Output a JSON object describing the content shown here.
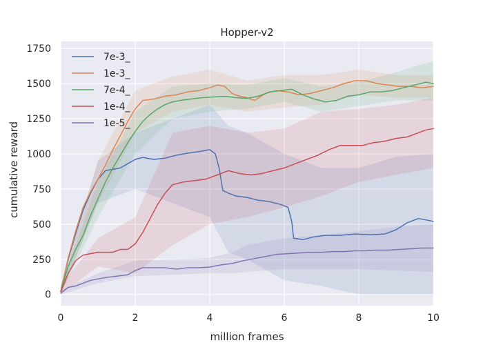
{
  "chart_data": {
    "type": "line",
    "title": "Hopper-v2",
    "xlabel": "million frames",
    "ylabel": "cumulative reward",
    "xlim": [
      0,
      10
    ],
    "ylim": [
      -80,
      1800
    ],
    "xticks": [
      0,
      2,
      4,
      6,
      8,
      10
    ],
    "yticks": [
      0,
      250,
      500,
      750,
      1000,
      1250,
      1500,
      1750
    ],
    "grid": true,
    "legend_position": "upper-left",
    "background": "#eaeaf2",
    "series": [
      {
        "name": "7e-3_",
        "color": "#4c72b0",
        "points": [
          [
            0,
            20
          ],
          [
            0.2,
            250
          ],
          [
            0.4,
            430
          ],
          [
            0.6,
            600
          ],
          [
            0.8,
            720
          ],
          [
            1.0,
            820
          ],
          [
            1.2,
            880
          ],
          [
            1.4,
            890
          ],
          [
            1.6,
            900
          ],
          [
            1.8,
            930
          ],
          [
            2.0,
            960
          ],
          [
            2.2,
            975
          ],
          [
            2.5,
            960
          ],
          [
            2.8,
            970
          ],
          [
            3.1,
            990
          ],
          [
            3.4,
            1005
          ],
          [
            3.7,
            1015
          ],
          [
            4.0,
            1030
          ],
          [
            4.15,
            1000
          ],
          [
            4.25,
            900
          ],
          [
            4.35,
            740
          ],
          [
            4.5,
            720
          ],
          [
            4.7,
            700
          ],
          [
            5.0,
            690
          ],
          [
            5.3,
            670
          ],
          [
            5.6,
            660
          ],
          [
            5.9,
            640
          ],
          [
            6.1,
            620
          ],
          [
            6.2,
            520
          ],
          [
            6.25,
            400
          ],
          [
            6.5,
            390
          ],
          [
            6.8,
            410
          ],
          [
            7.1,
            420
          ],
          [
            7.5,
            420
          ],
          [
            7.9,
            430
          ],
          [
            8.3,
            425
          ],
          [
            8.7,
            430
          ],
          [
            9.0,
            460
          ],
          [
            9.3,
            510
          ],
          [
            9.6,
            540
          ],
          [
            9.8,
            530
          ],
          [
            10,
            520
          ]
        ],
        "band": [
          [
            0,
            0,
            60
          ],
          [
            1,
            650,
            950
          ],
          [
            2,
            750,
            1150
          ],
          [
            3,
            650,
            1250
          ],
          [
            4,
            550,
            1350
          ],
          [
            4.5,
            300,
            1200
          ],
          [
            5,
            250,
            1150
          ],
          [
            6,
            100,
            1000
          ],
          [
            7,
            60,
            900
          ],
          [
            8,
            0,
            900
          ],
          [
            9,
            0,
            980
          ],
          [
            10,
            0,
            1000
          ]
        ]
      },
      {
        "name": "1e-3_",
        "color": "#dd8452",
        "points": [
          [
            0,
            20
          ],
          [
            0.2,
            260
          ],
          [
            0.4,
            450
          ],
          [
            0.6,
            620
          ],
          [
            0.8,
            730
          ],
          [
            1.0,
            820
          ],
          [
            1.2,
            920
          ],
          [
            1.4,
            1030
          ],
          [
            1.6,
            1130
          ],
          [
            1.8,
            1230
          ],
          [
            2.0,
            1320
          ],
          [
            2.2,
            1380
          ],
          [
            2.5,
            1390
          ],
          [
            2.8,
            1410
          ],
          [
            3.1,
            1420
          ],
          [
            3.4,
            1440
          ],
          [
            3.7,
            1450
          ],
          [
            4.0,
            1470
          ],
          [
            4.2,
            1490
          ],
          [
            4.4,
            1480
          ],
          [
            4.6,
            1430
          ],
          [
            4.8,
            1410
          ],
          [
            5.0,
            1400
          ],
          [
            5.2,
            1380
          ],
          [
            5.5,
            1430
          ],
          [
            5.8,
            1450
          ],
          [
            6.1,
            1440
          ],
          [
            6.4,
            1420
          ],
          [
            6.7,
            1430
          ],
          [
            7.0,
            1450
          ],
          [
            7.3,
            1470
          ],
          [
            7.6,
            1500
          ],
          [
            7.9,
            1520
          ],
          [
            8.2,
            1520
          ],
          [
            8.5,
            1500
          ],
          [
            8.8,
            1490
          ],
          [
            9.1,
            1480
          ],
          [
            9.4,
            1480
          ],
          [
            9.7,
            1470
          ],
          [
            10,
            1480
          ]
        ],
        "band": [
          [
            0,
            0,
            60
          ],
          [
            1,
            650,
            950
          ],
          [
            2,
            1150,
            1450
          ],
          [
            3,
            1300,
            1550
          ],
          [
            4,
            1350,
            1600
          ],
          [
            5,
            1300,
            1520
          ],
          [
            6,
            1330,
            1560
          ],
          [
            7,
            1350,
            1560
          ],
          [
            8,
            1420,
            1600
          ],
          [
            9,
            1400,
            1560
          ],
          [
            10,
            1400,
            1560
          ]
        ]
      },
      {
        "name": "7e-4_",
        "color": "#55a868",
        "points": [
          [
            0,
            20
          ],
          [
            0.2,
            200
          ],
          [
            0.4,
            320
          ],
          [
            0.6,
            420
          ],
          [
            0.8,
            560
          ],
          [
            1.0,
            680
          ],
          [
            1.2,
            800
          ],
          [
            1.4,
            900
          ],
          [
            1.6,
            990
          ],
          [
            1.8,
            1080
          ],
          [
            2.0,
            1160
          ],
          [
            2.2,
            1230
          ],
          [
            2.4,
            1280
          ],
          [
            2.6,
            1320
          ],
          [
            2.8,
            1350
          ],
          [
            3.0,
            1370
          ],
          [
            3.2,
            1380
          ],
          [
            3.5,
            1390
          ],
          [
            3.8,
            1400
          ],
          [
            4.1,
            1405
          ],
          [
            4.4,
            1410
          ],
          [
            4.7,
            1400
          ],
          [
            5.0,
            1395
          ],
          [
            5.3,
            1410
          ],
          [
            5.6,
            1440
          ],
          [
            5.9,
            1450
          ],
          [
            6.2,
            1460
          ],
          [
            6.5,
            1420
          ],
          [
            6.8,
            1390
          ],
          [
            7.1,
            1370
          ],
          [
            7.4,
            1380
          ],
          [
            7.7,
            1410
          ],
          [
            8.0,
            1420
          ],
          [
            8.3,
            1440
          ],
          [
            8.6,
            1440
          ],
          [
            8.9,
            1450
          ],
          [
            9.2,
            1470
          ],
          [
            9.5,
            1490
          ],
          [
            9.8,
            1510
          ],
          [
            10,
            1500
          ]
        ],
        "band": [
          [
            0,
            0,
            60
          ],
          [
            1,
            550,
            800
          ],
          [
            2,
            1000,
            1300
          ],
          [
            3,
            1250,
            1480
          ],
          [
            4,
            1300,
            1500
          ],
          [
            5,
            1320,
            1490
          ],
          [
            6,
            1370,
            1540
          ],
          [
            7,
            1300,
            1480
          ],
          [
            8,
            1340,
            1510
          ],
          [
            9,
            1380,
            1580
          ],
          [
            10,
            1380,
            1660
          ]
        ]
      },
      {
        "name": "1e-4_",
        "color": "#c44e52",
        "points": [
          [
            0,
            20
          ],
          [
            0.2,
            150
          ],
          [
            0.4,
            240
          ],
          [
            0.6,
            280
          ],
          [
            0.8,
            290
          ],
          [
            1.0,
            300
          ],
          [
            1.2,
            300
          ],
          [
            1.4,
            300
          ],
          [
            1.6,
            320
          ],
          [
            1.8,
            320
          ],
          [
            2.0,
            360
          ],
          [
            2.2,
            440
          ],
          [
            2.4,
            540
          ],
          [
            2.6,
            640
          ],
          [
            2.8,
            720
          ],
          [
            3.0,
            780
          ],
          [
            3.3,
            800
          ],
          [
            3.6,
            810
          ],
          [
            3.9,
            820
          ],
          [
            4.2,
            850
          ],
          [
            4.5,
            880
          ],
          [
            4.8,
            860
          ],
          [
            5.1,
            850
          ],
          [
            5.4,
            860
          ],
          [
            5.7,
            880
          ],
          [
            6.0,
            900
          ],
          [
            6.3,
            930
          ],
          [
            6.6,
            960
          ],
          [
            6.9,
            990
          ],
          [
            7.2,
            1030
          ],
          [
            7.5,
            1060
          ],
          [
            7.8,
            1060
          ],
          [
            8.1,
            1060
          ],
          [
            8.4,
            1080
          ],
          [
            8.7,
            1090
          ],
          [
            9.0,
            1110
          ],
          [
            9.3,
            1120
          ],
          [
            9.6,
            1150
          ],
          [
            9.8,
            1170
          ],
          [
            10,
            1180
          ]
        ],
        "band": [
          [
            0,
            0,
            60
          ],
          [
            1,
            200,
            400
          ],
          [
            2,
            150,
            550
          ],
          [
            3,
            350,
            1150
          ],
          [
            4,
            500,
            1200
          ],
          [
            5,
            550,
            1150
          ],
          [
            6,
            620,
            1180
          ],
          [
            7,
            700,
            1300
          ],
          [
            8,
            800,
            1320
          ],
          [
            9,
            850,
            1350
          ],
          [
            10,
            900,
            1400
          ]
        ]
      },
      {
        "name": "1e-5_",
        "color": "#8172b3",
        "points": [
          [
            0,
            10
          ],
          [
            0.2,
            50
          ],
          [
            0.4,
            60
          ],
          [
            0.6,
            80
          ],
          [
            0.8,
            100
          ],
          [
            1.0,
            110
          ],
          [
            1.2,
            120
          ],
          [
            1.5,
            130
          ],
          [
            1.8,
            140
          ],
          [
            2.0,
            170
          ],
          [
            2.2,
            190
          ],
          [
            2.5,
            190
          ],
          [
            2.8,
            190
          ],
          [
            3.1,
            180
          ],
          [
            3.4,
            190
          ],
          [
            3.7,
            190
          ],
          [
            4.0,
            195
          ],
          [
            4.3,
            210
          ],
          [
            4.6,
            220
          ],
          [
            4.9,
            240
          ],
          [
            5.2,
            255
          ],
          [
            5.5,
            270
          ],
          [
            5.8,
            285
          ],
          [
            6.1,
            290
          ],
          [
            6.4,
            295
          ],
          [
            6.7,
            300
          ],
          [
            7.0,
            300
          ],
          [
            7.3,
            305
          ],
          [
            7.6,
            305
          ],
          [
            7.9,
            310
          ],
          [
            8.2,
            310
          ],
          [
            8.5,
            315
          ],
          [
            8.8,
            315
          ],
          [
            9.1,
            320
          ],
          [
            9.4,
            325
          ],
          [
            9.7,
            330
          ],
          [
            10,
            330
          ]
        ],
        "band": [
          [
            0,
            0,
            30
          ],
          [
            1,
            80,
            150
          ],
          [
            2,
            130,
            240
          ],
          [
            3,
            140,
            250
          ],
          [
            4,
            150,
            260
          ],
          [
            4.6,
            150,
            300
          ],
          [
            5,
            160,
            350
          ],
          [
            6,
            180,
            400
          ],
          [
            7,
            180,
            420
          ],
          [
            8,
            180,
            450
          ],
          [
            9,
            170,
            480
          ],
          [
            10,
            160,
            500
          ]
        ]
      }
    ]
  }
}
